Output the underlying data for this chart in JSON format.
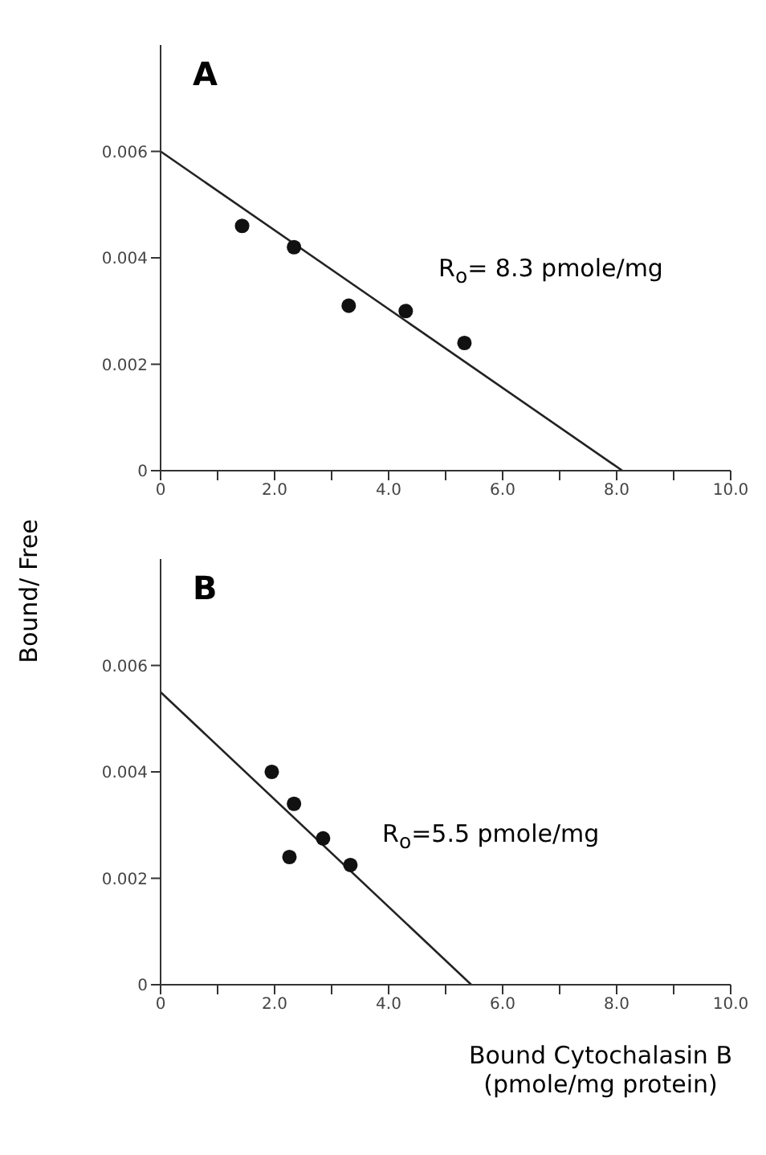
{
  "chart_data": [
    {
      "type": "scatter",
      "title": "A",
      "xlim": [
        0,
        10
      ],
      "ylim": [
        0,
        0.008
      ],
      "xticks": [
        0,
        {
          "value": 1,
          "label": null
        },
        {
          "value": 2,
          "label": "2.0"
        },
        {
          "value": 3,
          "label": null
        },
        {
          "value": 4,
          "label": "4.0"
        },
        {
          "value": 5,
          "label": null
        },
        {
          "value": 6,
          "label": "6.0"
        },
        {
          "value": 7,
          "label": null
        },
        {
          "value": 8,
          "label": "8.0"
        },
        {
          "value": 9,
          "label": null
        },
        {
          "value": 10,
          "label": "10.0"
        }
      ],
      "yticks": [
        0,
        0.002,
        0.004,
        0.006
      ],
      "series": [
        {
          "color": "#111111",
          "marker": "circle",
          "x": [
            1.43,
            2.34,
            3.3,
            4.3,
            5.33
          ],
          "values": [
            0.0046,
            0.0042,
            0.0031,
            0.003,
            0.0024
          ]
        },
        {
          "type": "line",
          "marker": "none",
          "color": "#222222",
          "x": [
            0,
            8.1
          ],
          "values": [
            0.006,
            0
          ]
        }
      ],
      "annotations": [
        "R$_{o}$= 8.3 pmole/mg"
      ]
    },
    {
      "type": "scatter",
      "title": "B",
      "xlim": [
        0,
        10
      ],
      "ylim": [
        0,
        0.008
      ],
      "ylabel": "Bound/ Free",
      "xlabel": "Bound Cytochalasin B (pmole/mg protein)",
      "xticks": [
        0,
        {
          "value": 1,
          "label": null
        },
        {
          "value": 2,
          "label": "2.0"
        },
        {
          "value": 3,
          "label": null
        },
        {
          "value": 4,
          "label": "4.0"
        },
        {
          "value": 5,
          "label": null
        },
        {
          "value": 6,
          "label": "6.0"
        },
        {
          "value": 7,
          "label": null
        },
        {
          "value": 8,
          "label": "8.0"
        },
        {
          "value": 9,
          "label": null
        },
        {
          "value": 10,
          "label": "10.0"
        }
      ],
      "yticks": [
        0,
        0.002,
        0.004,
        0.006
      ],
      "series": [
        {
          "color": "#111111",
          "marker": "circle",
          "x": [
            1.95,
            2.34,
            2.26,
            2.85,
            3.33
          ],
          "values": [
            0.004,
            0.0034,
            0.0024,
            0.00275,
            0.00225
          ]
        },
        {
          "type": "line",
          "marker": "none",
          "color": "#222222",
          "x": [
            0,
            5.45
          ],
          "values": [
            0.0055,
            0
          ]
        }
      ],
      "annotations": [
        "R$_{o}$=5.5 pmole/mg"
      ]
    }
  ]
}
